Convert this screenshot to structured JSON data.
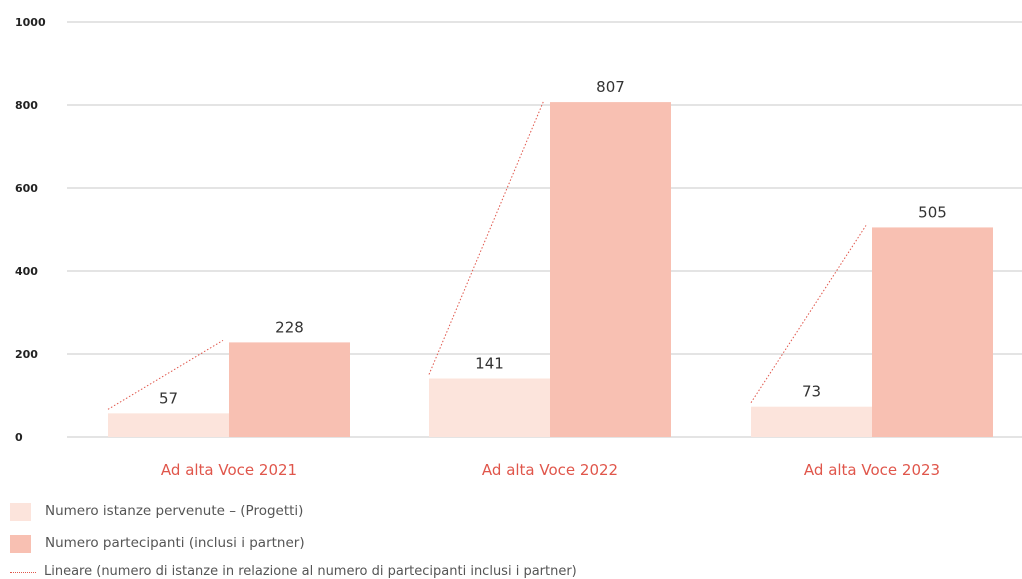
{
  "chart_data": {
    "type": "bar",
    "categories": [
      "Ad alta Voce 2021",
      "Ad alta Voce 2022",
      "Ad alta Voce 2023"
    ],
    "series": [
      {
        "name": "Numero istanze pervenute – (Progetti)",
        "values": [
          57,
          141,
          73
        ],
        "data_labels": [
          "57",
          "141",
          "73"
        ],
        "color": "#fce4dc"
      },
      {
        "name": "Numero partecipanti (inclusi i partner)",
        "values": [
          228,
          807,
          505
        ],
        "data_labels": [
          "228",
          "807",
          "505"
        ],
        "color": "#f8c0b2"
      }
    ],
    "trendline": {
      "name": "Lineare (numero di istanze in relazione al numero di partecipanti inclusi i partner)",
      "style": "dotted",
      "color": "#e0564b"
    },
    "ylim": [
      0,
      1000
    ],
    "yticks": [
      0,
      200,
      400,
      600,
      800,
      1000
    ],
    "ytick_labels": [
      "0",
      "200",
      "400",
      "600",
      "800",
      "1000"
    ],
    "grid": true,
    "legend_position": "bottom-left",
    "category_label_color": "#e0564b",
    "axis_label_color": "#222222",
    "gridline_color": "#c8c8c8"
  }
}
